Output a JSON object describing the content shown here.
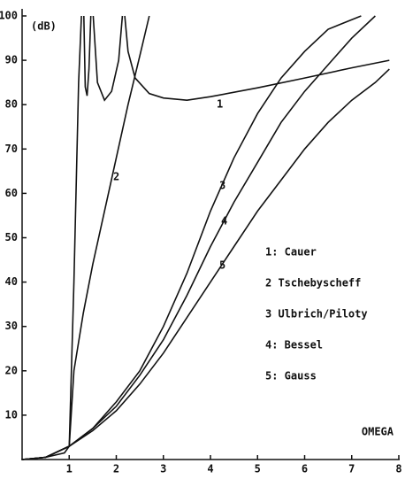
{
  "chart_data": {
    "type": "line",
    "y_label": "(dB)",
    "x_label": "OMEGA",
    "xlim": [
      0,
      8
    ],
    "xticks": [
      1,
      2,
      3,
      4,
      5,
      6,
      7,
      8
    ],
    "ylim": [
      0,
      100
    ],
    "yticks": [
      10,
      20,
      30,
      40,
      50,
      60,
      70,
      80,
      90,
      100
    ],
    "grid": false,
    "series": [
      {
        "name": "1: Cauer",
        "label": "1",
        "color": "#111111",
        "x": [
          0,
          0.5,
          0.9,
          1.0,
          1.1,
          1.2,
          1.26,
          null,
          1.31,
          1.34,
          1.38,
          1.42,
          1.46,
          null,
          1.51,
          1.6,
          1.75,
          1.9,
          2.05,
          2.13,
          null,
          2.18,
          2.25,
          2.4,
          2.7,
          3.0,
          3.5,
          4.0,
          5,
          6,
          7,
          7.8
        ],
        "values": [
          0,
          0.5,
          1.5,
          3,
          40,
          85,
          100,
          null,
          100,
          84,
          82,
          88,
          100,
          null,
          100,
          85,
          81,
          83,
          90,
          100,
          null,
          100,
          92,
          86,
          82.5,
          81.5,
          81,
          81.8,
          83.8,
          86,
          88.3,
          90
        ]
      },
      {
        "name": "2 Tschebyscheff",
        "label": "2",
        "color": "#111111",
        "x": [
          0,
          0.5,
          1,
          1.1,
          1.3,
          1.5,
          1.75,
          2.0,
          2.25,
          2.5,
          2.7
        ],
        "values": [
          0,
          0.5,
          3,
          20,
          33,
          44,
          56,
          68,
          80,
          91,
          100
        ]
      },
      {
        "name": "3 Ulbrich/Piloty",
        "label": "3",
        "color": "#111111",
        "x": [
          0,
          0.5,
          1,
          1.5,
          2,
          2.5,
          3,
          3.5,
          4,
          4.5,
          5,
          5.5,
          6,
          6.5,
          7.2
        ],
        "values": [
          0,
          0.5,
          3,
          7,
          13,
          20,
          30,
          42,
          56,
          68,
          78,
          86,
          92,
          97,
          100
        ]
      },
      {
        "name": "4: Bessel",
        "label": "4",
        "color": "#111111",
        "x": [
          0,
          0.5,
          1,
          1.5,
          2,
          2.5,
          3,
          3.5,
          4,
          4.5,
          5,
          5.5,
          6,
          6.5,
          7,
          7.5
        ],
        "values": [
          0,
          0.5,
          3,
          7,
          12,
          19,
          27,
          37,
          48,
          58,
          67,
          76,
          83,
          89,
          95,
          100
        ]
      },
      {
        "name": "5: Gauss",
        "label": "5",
        "color": "#111111",
        "x": [
          0,
          0.5,
          1,
          1.5,
          2,
          2.5,
          3,
          3.5,
          4,
          4.5,
          5,
          5.5,
          6,
          6.5,
          7,
          7.5,
          7.8
        ],
        "values": [
          0,
          0.5,
          3,
          6.5,
          11,
          17,
          24,
          32,
          40,
          48,
          56,
          63,
          70,
          76,
          81,
          85,
          88
        ]
      }
    ]
  }
}
